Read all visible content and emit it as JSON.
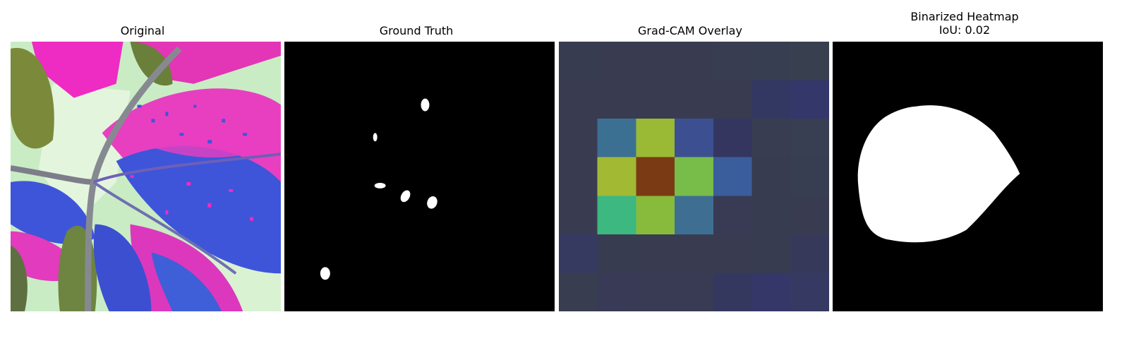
{
  "panels": [
    {
      "title": "Original"
    },
    {
      "title": "Ground Truth"
    },
    {
      "title": "Grad-CAM Overlay"
    },
    {
      "title": "Binarized Heatmap\nIoU: 0.02"
    }
  ],
  "gradcam_grid": [
    [
      "#383c50",
      "#393b50",
      "#393b50",
      "#393c51",
      "#393d51",
      "#383e51",
      "#384050"
    ],
    [
      "#393b50",
      "#393b50",
      "#393b50",
      "#393c51",
      "#393c51",
      "#333863",
      "#343769"
    ],
    [
      "#393b50",
      "#3c7093",
      "#9ab934",
      "#3c5091",
      "#353660",
      "#383d51",
      "#383f52"
    ],
    [
      "#393c51",
      "#a1b933",
      "#7a3a13",
      "#78bc4a",
      "#3a5d9b",
      "#383c51",
      "#383e51"
    ],
    [
      "#393c50",
      "#3cb880",
      "#88bb3b",
      "#3e6f93",
      "#383b53",
      "#383c51",
      "#393c50"
    ],
    [
      "#363960",
      "#383c51",
      "#393b50",
      "#393c51",
      "#393b51",
      "#383c51",
      "#37395a"
    ],
    [
      "#383d4f",
      "#393b56",
      "#393b55",
      "#393b55",
      "#35385e",
      "#353768",
      "#363961"
    ]
  ],
  "colors": {
    "background": "#ffffff",
    "mask_background": "#000000",
    "mask_foreground": "#ffffff"
  }
}
